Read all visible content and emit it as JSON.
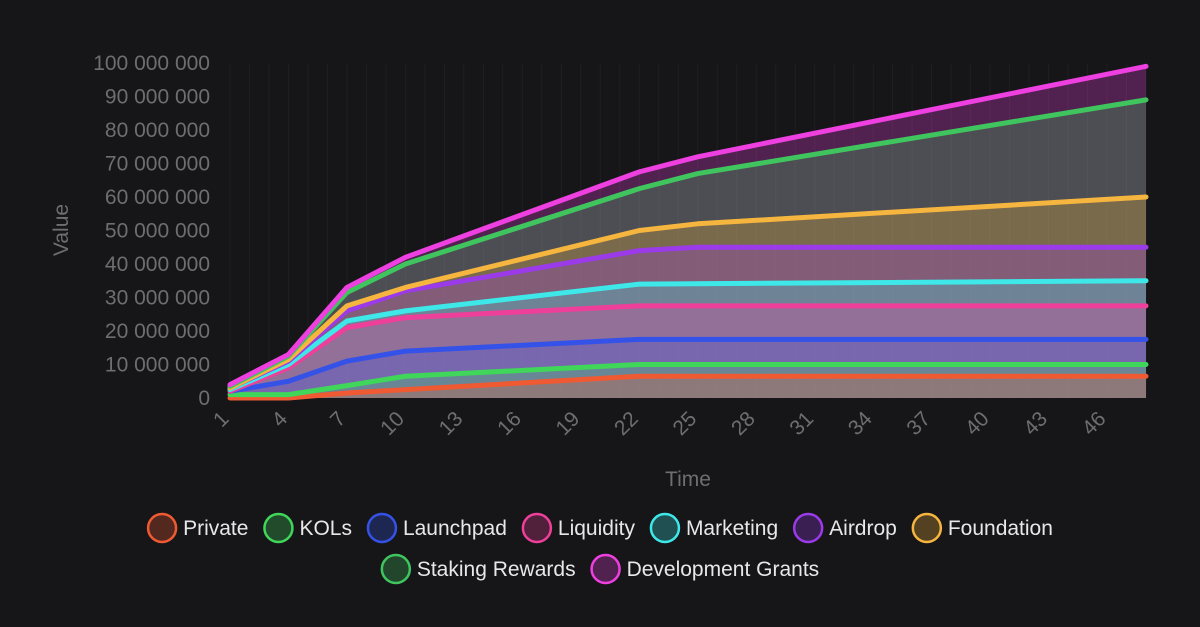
{
  "chart_data": {
    "type": "area",
    "stacked": true,
    "xlabel": "Time",
    "ylabel": "Value",
    "ylim": [
      0,
      100000000
    ],
    "yticks": [
      0,
      10000000,
      20000000,
      30000000,
      40000000,
      50000000,
      60000000,
      70000000,
      80000000,
      90000000,
      100000000
    ],
    "ytick_labels": [
      "0",
      "10 000 000",
      "20 000 000",
      "30 000 000",
      "40 000 000",
      "50 000 000",
      "60 000 000",
      "70 000 000",
      "80 000 000",
      "90 000 000",
      "100 000 000"
    ],
    "xlim": [
      1,
      48
    ],
    "xticks": [
      1,
      4,
      7,
      10,
      13,
      16,
      19,
      22,
      25,
      28,
      31,
      34,
      37,
      40,
      43,
      46
    ],
    "xtick_labels": [
      "1",
      "4",
      "7",
      "10",
      "13",
      "16",
      "19",
      "22",
      "25",
      "28",
      "31",
      "34",
      "37",
      "40",
      "43",
      "46"
    ],
    "legend_position": "bottom",
    "series": [
      {
        "name": "Private",
        "color": "#f05a32",
        "x": [
          1,
          4,
          7,
          22,
          48
        ],
        "values": [
          0,
          0,
          1500000,
          6500000,
          6500000
        ]
      },
      {
        "name": "KOLs",
        "color": "#3fd65a",
        "x": [
          1,
          4,
          7,
          10,
          22,
          48
        ],
        "values": [
          1000000,
          1000000,
          3700000,
          6500000,
          10000000,
          10000000
        ]
      },
      {
        "name": "Launchpad",
        "color": "#3552e8",
        "x": [
          1,
          4,
          7,
          10,
          22,
          48
        ],
        "values": [
          2000000,
          5000000,
          11000000,
          14000000,
          17500000,
          17500000
        ]
      },
      {
        "name": "Liquidity",
        "color": "#ee3f9a",
        "x": [
          1,
          4,
          7,
          10,
          22,
          48
        ],
        "values": [
          2000000,
          9000000,
          21000000,
          24000000,
          27500000,
          27500000
        ]
      },
      {
        "name": "Marketing",
        "color": "#3ee8e8",
        "x": [
          1,
          4,
          7,
          10,
          22,
          48
        ],
        "values": [
          2500000,
          10000000,
          23000000,
          26000000,
          34000000,
          35000000
        ]
      },
      {
        "name": "Airdrop",
        "color": "#9a3ae8",
        "x": [
          1,
          4,
          7,
          10,
          22,
          25,
          48
        ],
        "values": [
          3000000,
          11000000,
          26000000,
          32000000,
          44000000,
          45000000,
          45000000
        ]
      },
      {
        "name": "Foundation",
        "color": "#f5b53e",
        "x": [
          1,
          4,
          7,
          10,
          22,
          25,
          48
        ],
        "values": [
          3000000,
          11500000,
          27500000,
          33000000,
          50000000,
          52000000,
          60000000
        ]
      },
      {
        "name": "Staking Rewards",
        "color": "#3fc45e",
        "x": [
          1,
          4,
          7,
          10,
          22,
          25,
          48
        ],
        "values": [
          3500000,
          12500000,
          31500000,
          40000000,
          62500000,
          67000000,
          89000000
        ]
      },
      {
        "name": "Development Grants",
        "color": "#ee3fe0",
        "x": [
          1,
          4,
          7,
          10,
          22,
          25,
          48
        ],
        "values": [
          4000000,
          13000000,
          33000000,
          42000000,
          67500000,
          72000000,
          99000000
        ]
      }
    ]
  }
}
